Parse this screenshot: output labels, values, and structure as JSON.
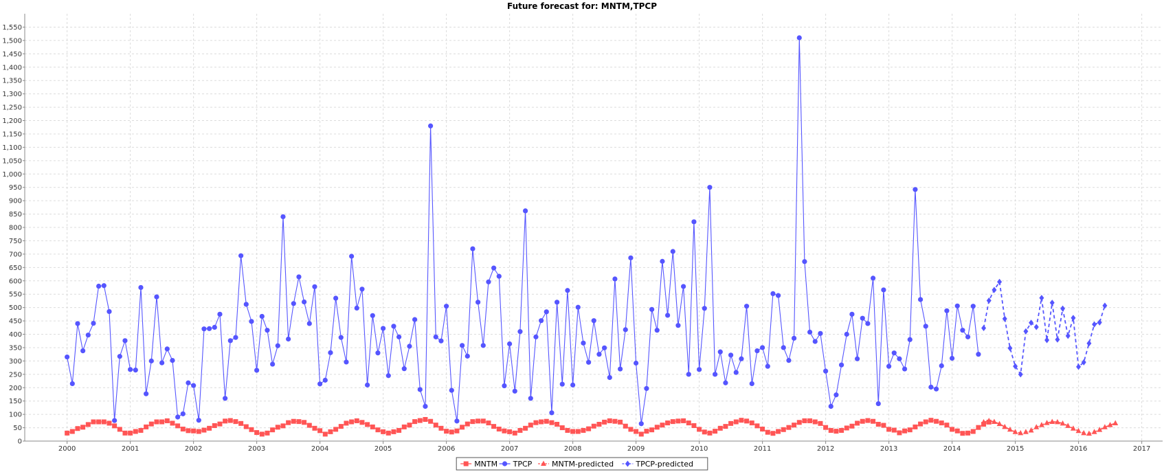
{
  "chart_data": {
    "type": "line",
    "title": "Future forecast for: MNTM,TPCP",
    "xlabel": "",
    "ylabel": "",
    "xlim": [
      1999.33,
      2017.33
    ],
    "ylim": [
      0,
      1600
    ],
    "x_ticks": [
      2000,
      2001,
      2002,
      2003,
      2004,
      2005,
      2006,
      2007,
      2008,
      2009,
      2010,
      2011,
      2012,
      2013,
      2014,
      2015,
      2016,
      2017
    ],
    "y_ticks": [
      0,
      50,
      100,
      150,
      200,
      250,
      300,
      350,
      400,
      450,
      500,
      550,
      600,
      650,
      700,
      750,
      800,
      850,
      900,
      950,
      1000,
      1050,
      1100,
      1150,
      1200,
      1250,
      1300,
      1350,
      1400,
      1450,
      1500,
      1550
    ],
    "grid": true,
    "legend_position": "bottom",
    "x_start": 2000,
    "x_step": 0.08333,
    "series": [
      {
        "name": "MNTM",
        "color": "#ff5555",
        "marker": "square",
        "dashed": false,
        "start_index": 0,
        "values": [
          30,
          36,
          47,
          52,
          62,
          72,
          72,
          72,
          67,
          57,
          44,
          30,
          30,
          36,
          40,
          53,
          64,
          72,
          72,
          76,
          67,
          57,
          45,
          39,
          38,
          36,
          41,
          48,
          58,
          64,
          75,
          77,
          73,
          66,
          54,
          43,
          32,
          26,
          30,
          42,
          52,
          57,
          69,
          74,
          73,
          70,
          59,
          48,
          39,
          26,
          35,
          44,
          55,
          67,
          72,
          76,
          70,
          62,
          53,
          42,
          35,
          30,
          35,
          40,
          53,
          60,
          73,
          77,
          81,
          74,
          60,
          48,
          37,
          34,
          38,
          52,
          64,
          73,
          75,
          75,
          68,
          55,
          45,
          38,
          35,
          30,
          40,
          48,
          60,
          69,
          72,
          74,
          69,
          63,
          50,
          40,
          36,
          36,
          40,
          46,
          56,
          63,
          71,
          76,
          74,
          71,
          56,
          44,
          36,
          26,
          37,
          42,
          52,
          60,
          68,
          73,
          75,
          76,
          68,
          58,
          44,
          34,
          30,
          37,
          48,
          55,
          66,
          72,
          78,
          75,
          68,
          57,
          45,
          33,
          29,
          36,
          43,
          51,
          60,
          70,
          76,
          76,
          72,
          66,
          51,
          40,
          37,
          40,
          49,
          56,
          67,
          74,
          77,
          74,
          63,
          59,
          44,
          41,
          31,
          38,
          42,
          53,
          64,
          72,
          78,
          74,
          68,
          60,
          44,
          38,
          29,
          30,
          36,
          51,
          63,
          71
        ]
      },
      {
        "name": "TPCP",
        "color": "#5555ff",
        "marker": "circle",
        "dashed": false,
        "start_index": 0,
        "values": [
          315,
          215,
          440,
          338,
          397,
          441,
          580,
          582,
          485,
          77,
          317,
          376,
          268,
          266,
          575,
          177,
          300,
          540,
          293,
          345,
          302,
          90,
          102,
          218,
          208,
          78,
          420,
          421,
          426,
          475,
          160,
          376,
          388,
          694,
          512,
          448,
          265,
          467,
          415,
          288,
          357,
          840,
          382,
          515,
          615,
          521,
          440,
          578,
          214,
          228,
          331,
          535,
          388,
          296,
          692,
          498,
          569,
          210,
          470,
          330,
          422,
          245,
          430,
          390,
          271,
          355,
          455,
          193,
          130,
          1180,
          390,
          375,
          505,
          190,
          75,
          358,
          318,
          720,
          520,
          358,
          596,
          648,
          617,
          207,
          364,
          187,
          410,
          862,
          160,
          390,
          451,
          484,
          106,
          520,
          213,
          564,
          210,
          501,
          367,
          295,
          451,
          325,
          349,
          238,
          607,
          270,
          417,
          686,
          292,
          65,
          197,
          493,
          415,
          673,
          471,
          710,
          433,
          579,
          250,
          821,
          268,
          497,
          950,
          250,
          334,
          218,
          322,
          257,
          308,
          505,
          215,
          338,
          350,
          280,
          552,
          545,
          350,
          302,
          385,
          1510,
          672,
          408,
          373,
          403,
          262,
          130,
          173,
          285,
          400,
          475,
          308,
          460,
          440,
          610,
          140,
          566,
          280,
          330,
          308,
          270,
          380,
          942,
          530,
          430,
          202,
          195,
          282,
          488,
          310,
          506,
          415,
          390,
          505,
          325
        ]
      },
      {
        "name": "MNTM-predicted",
        "color": "#ff5555",
        "marker": "triangle",
        "dashed": true,
        "start_index": 174,
        "values": [
          71,
          76,
          72,
          64,
          53,
          43,
          34,
          30,
          34,
          40,
          52,
          60,
          68,
          72,
          71,
          66,
          57,
          47,
          38,
          30,
          28,
          34,
          42,
          52,
          60,
          67
        ]
      },
      {
        "name": "TPCP-predicted",
        "color": "#5555ff",
        "marker": "diamond",
        "dashed": true,
        "start_index": 174,
        "values": [
          423,
          526,
          566,
          596,
          458,
          348,
          280,
          250,
          411,
          443,
          427,
          536,
          378,
          518,
          380,
          496,
          394,
          461,
          278,
          295,
          366,
          437,
          444,
          507
        ]
      }
    ]
  }
}
